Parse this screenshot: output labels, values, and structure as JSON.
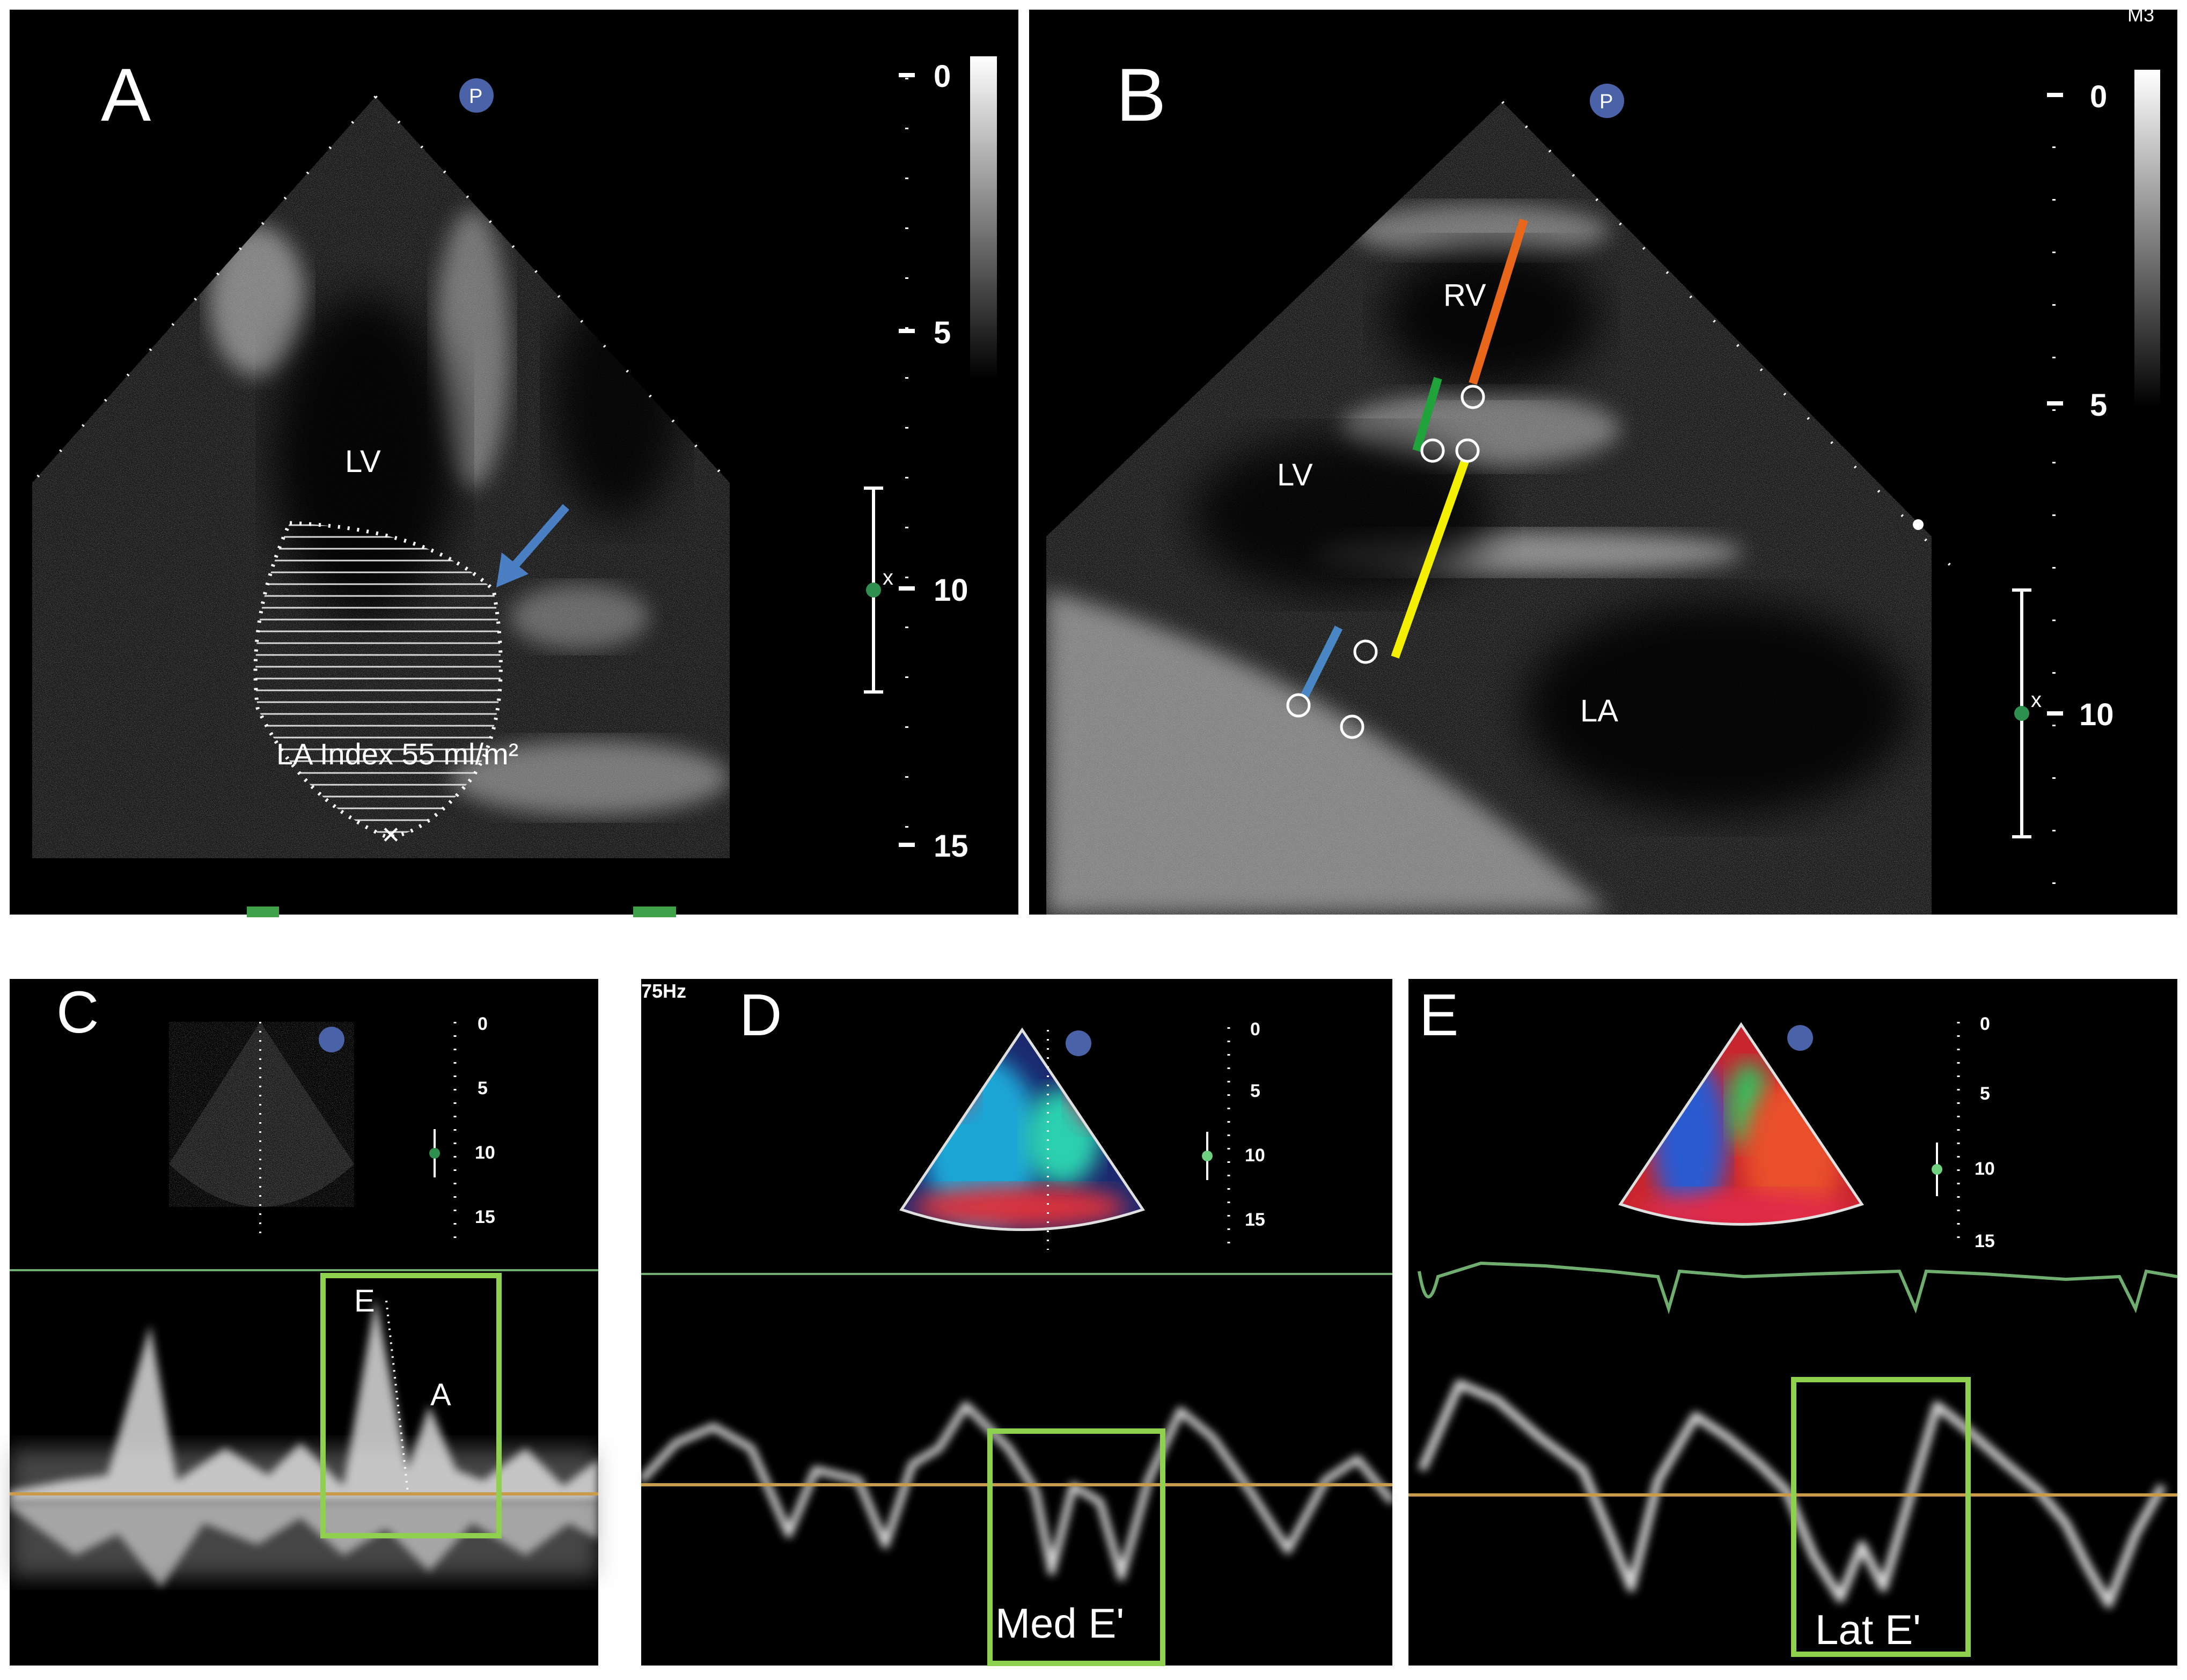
{
  "panels": {
    "a": {
      "letter": "A",
      "labels": {
        "lv": "LV",
        "la_index": "LA Index 55 ml/m²"
      },
      "depth_ticks": [
        "0",
        "5",
        "10",
        "15"
      ]
    },
    "b": {
      "letter": "B",
      "corner_text": "M3",
      "labels": {
        "rv": "RV",
        "lv": "LV",
        "la": "LA"
      },
      "depth_ticks": [
        "0",
        "5",
        "10"
      ],
      "measure_colors": {
        "rv": "#e8671a",
        "septum": "#1fa33a",
        "lv": "#f5f000",
        "wall": "#4a86c6"
      }
    },
    "c": {
      "letter": "C",
      "labels": {
        "e": "E",
        "a": "A"
      },
      "depth_ticks": [
        "0",
        "5",
        "10",
        "15"
      ]
    },
    "d": {
      "letter": "D",
      "labels": {
        "top_left": "75Hz",
        "med_e": "Med E'"
      },
      "depth_ticks": [
        "0",
        "5",
        "10",
        "15"
      ]
    },
    "e": {
      "letter": "E",
      "labels": {
        "lat_e": "Lat E'"
      },
      "depth_ticks": [
        "0",
        "5",
        "10",
        "15"
      ]
    }
  },
  "colors": {
    "highlight_box": "#8fd14f",
    "baseline": "#c89a4a",
    "ecg": "#6fae6f",
    "arrow": "#4a7fc4"
  }
}
